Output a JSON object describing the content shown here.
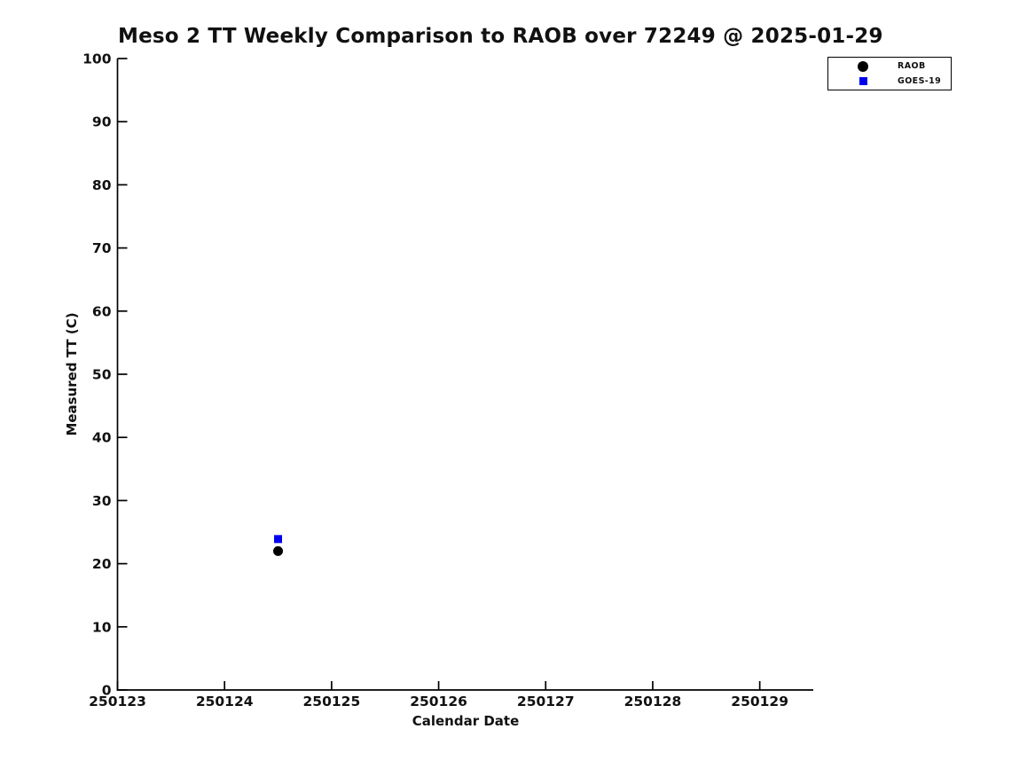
{
  "title": "Meso 2 TT Weekly Comparison to RAOB over 72249 @ 2025-01-29",
  "chart_data": {
    "type": "scatter",
    "title": "Meso 2 TT Weekly Comparison to RAOB over 72249 @ 2025-01-29",
    "xlabel": "Calendar Date",
    "ylabel": "Measured TT (C)",
    "xlim": [
      250123,
      250129.5
    ],
    "ylim": [
      0,
      100
    ],
    "x_ticks": [
      250123,
      250124,
      250125,
      250126,
      250127,
      250128,
      250129
    ],
    "y_ticks": [
      0,
      10,
      20,
      30,
      40,
      50,
      60,
      70,
      80,
      90,
      100
    ],
    "grid": false,
    "tick_direction": "in",
    "legend_position": "top-right-outside",
    "axis_color": "#000000",
    "text_color": "#111111",
    "background_color": "#ffffff",
    "series": [
      {
        "name": "RAOB",
        "marker": "circle",
        "color": "#000000",
        "points": [
          {
            "x": 250124.5,
            "y": 22.0
          }
        ]
      },
      {
        "name": "GOES-19",
        "marker": "square",
        "color": "#0000ee",
        "points": [
          {
            "x": 250124.5,
            "y": 23.9
          }
        ]
      }
    ]
  }
}
